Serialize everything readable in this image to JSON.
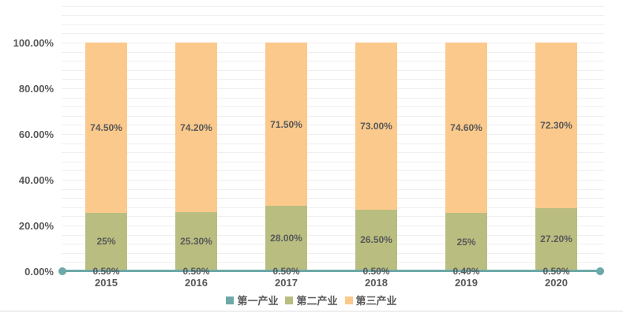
{
  "chart_data": {
    "type": "bar",
    "stacked": true,
    "title": "",
    "categories": [
      "2015",
      "2016",
      "2017",
      "2018",
      "2019",
      "2020"
    ],
    "series": [
      {
        "name": "第一产业",
        "key": "primary-industry",
        "color": "#6EA9A9",
        "values": [
          0.5,
          0.5,
          0.5,
          0.5,
          0.4,
          0.5
        ],
        "data_labels": [
          "0.50%",
          "0.50%",
          "0.50%",
          "0.50%",
          "0.40%",
          "0.50%"
        ]
      },
      {
        "name": "第二产业",
        "key": "secondary-industry",
        "color": "#B9BE80",
        "values": [
          25,
          25.3,
          28,
          26.5,
          25,
          27.2
        ],
        "data_labels": [
          "25%",
          "25.30%",
          "28.00%",
          "26.50%",
          "25%",
          "27.20%"
        ]
      },
      {
        "name": "第三产业",
        "key": "tertiary-industry",
        "color": "#FBC98C",
        "values": [
          74.5,
          74.2,
          71.5,
          73,
          74.6,
          72.3
        ],
        "data_labels": [
          "74.50%",
          "74.20%",
          "71.50%",
          "73.00%",
          "74.60%",
          "72.30%"
        ]
      }
    ],
    "y_axis": {
      "min": 0,
      "max": 100,
      "tick_labels": [
        "0.00%",
        "20.00%",
        "40.00%",
        "60.00%",
        "80.00%",
        "100.00%"
      ],
      "tick_step_pct": 20,
      "minor_grid_step_pct": 4
    },
    "x_axis": {
      "label": ""
    },
    "legend": {
      "position": "bottom",
      "items": [
        "第一产业",
        "第二产业",
        "第三产业"
      ]
    },
    "grid": {
      "horizontal": true,
      "vertical": false
    },
    "baseline_marker_series": "第一产业",
    "colors": {
      "label_text": "#595959",
      "gridline": "#EFEFEF",
      "divider": "#DDDDDD",
      "background": "#FFFFFF"
    }
  }
}
